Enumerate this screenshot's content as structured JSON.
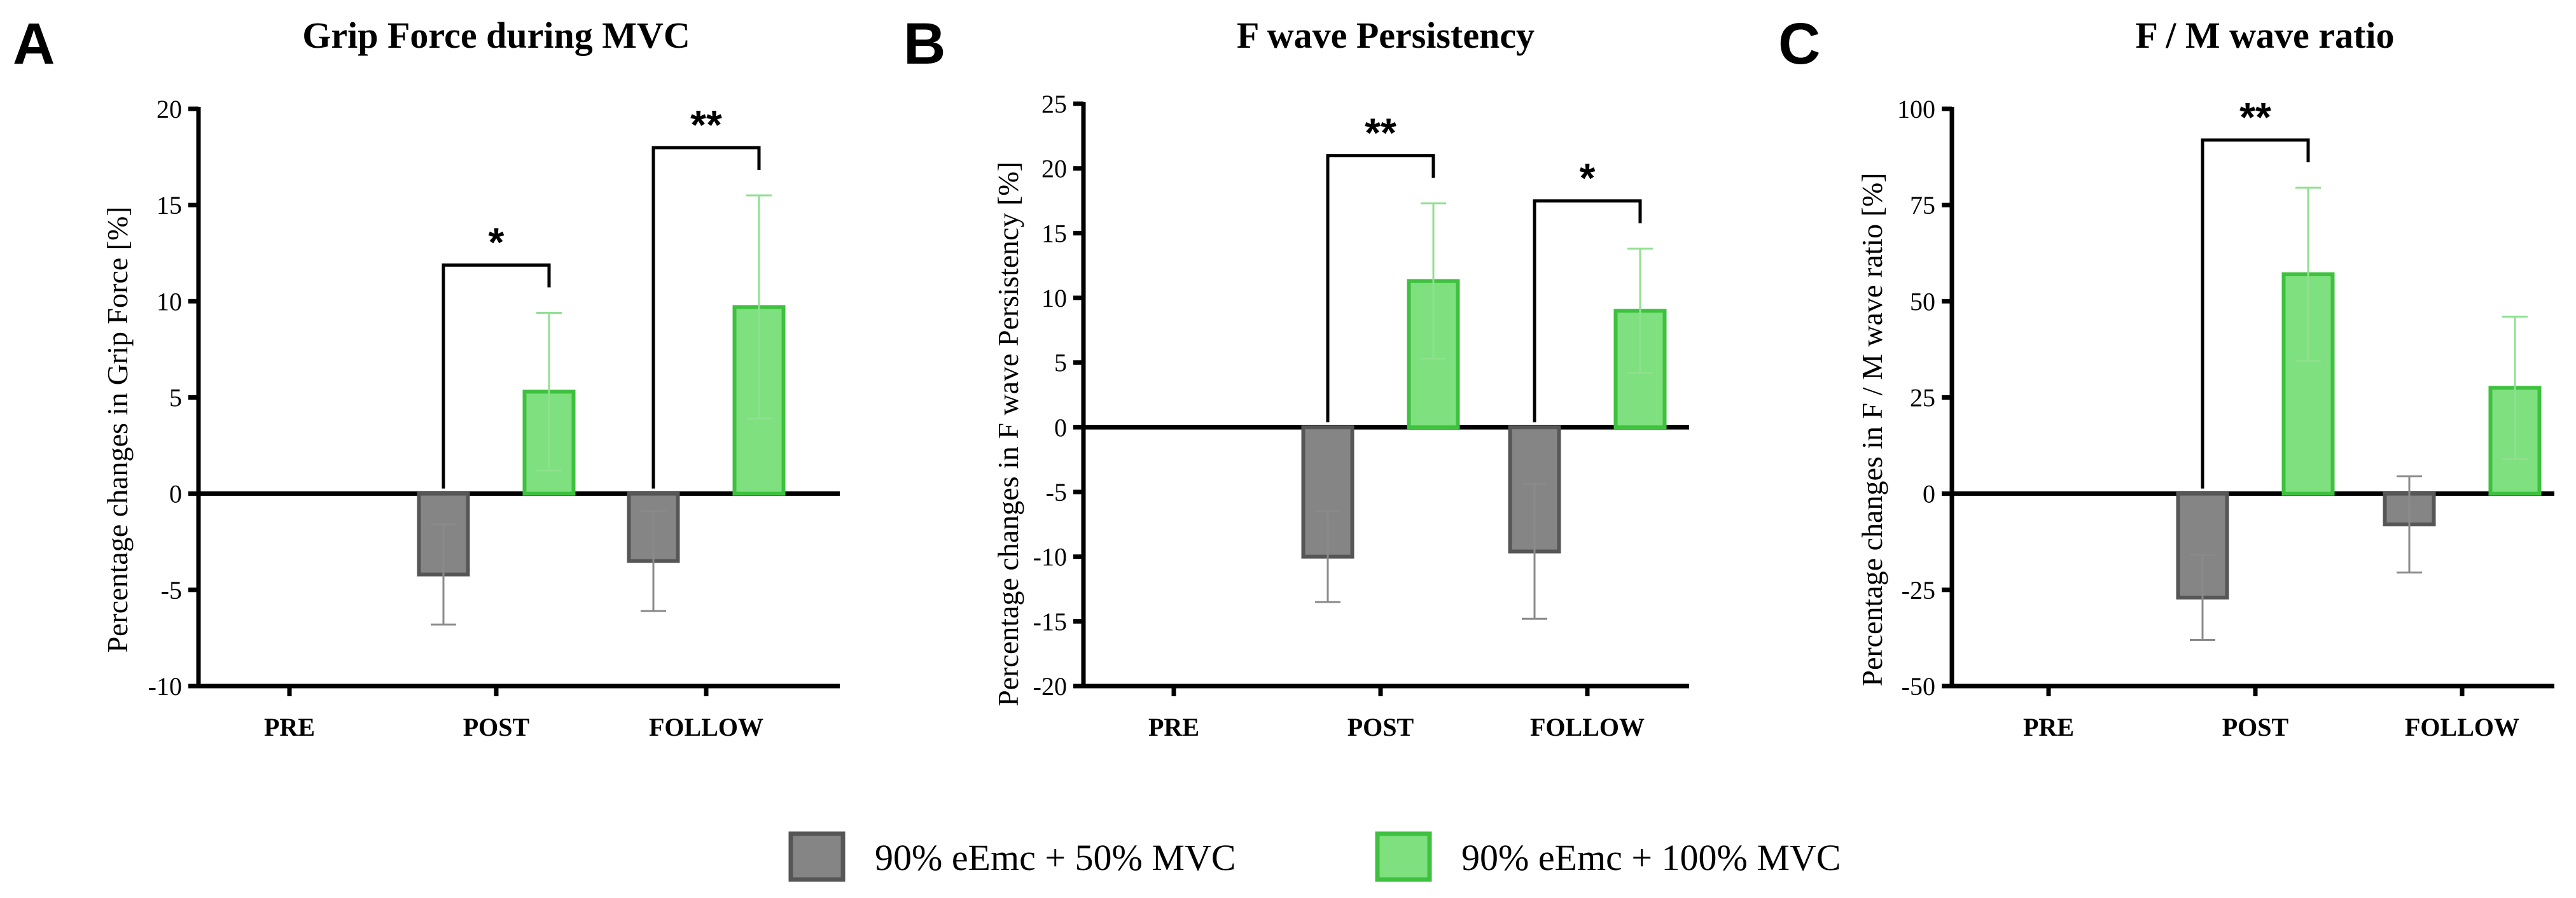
{
  "legend": {
    "items": [
      {
        "label": "90% eEmc + 50% MVC",
        "fill": "#858585",
        "stroke": "#565656"
      },
      {
        "label": "90% eEmc + 100% MVC",
        "fill": "#7ee07e",
        "stroke": "#3ec13e"
      }
    ]
  },
  "chart_data": [
    {
      "panel": "A",
      "type": "bar",
      "title": "Grip Force during MVC",
      "ylabel": "Percentage changes in Grip Force [%]",
      "xlabel": "",
      "categories": [
        "PRE",
        "POST",
        "FOLLOW"
      ],
      "ylim": [
        -10,
        20
      ],
      "yticks": [
        -10,
        -5,
        0,
        5,
        10,
        15,
        20
      ],
      "grid": false,
      "legend_position": "bottom",
      "series": [
        {
          "name": "90% eEmc + 50% MVC",
          "values": [
            null,
            -4.2,
            -3.5
          ],
          "error": [
            null,
            2.6,
            2.6
          ]
        },
        {
          "name": "90% eEmc + 100% MVC",
          "values": [
            null,
            5.3,
            9.7
          ],
          "error": [
            null,
            4.1,
            5.8
          ]
        }
      ],
      "significance": [
        {
          "category": "POST",
          "label": "*"
        },
        {
          "category": "FOLLOW",
          "label": "**"
        }
      ]
    },
    {
      "panel": "B",
      "type": "bar",
      "title": "F wave Persistency",
      "ylabel": "Percentage changes in F wave Persistency [%]",
      "xlabel": "",
      "categories": [
        "PRE",
        "POST",
        "FOLLOW"
      ],
      "ylim": [
        -20,
        25
      ],
      "yticks": [
        -20,
        -15,
        -10,
        -5,
        0,
        5,
        10,
        15,
        20,
        25
      ],
      "grid": false,
      "legend_position": "bottom",
      "series": [
        {
          "name": "90% eEmc + 50% MVC",
          "values": [
            null,
            -10.0,
            -9.6
          ],
          "error": [
            null,
            3.5,
            5.2
          ]
        },
        {
          "name": "90% eEmc + 100% MVC",
          "values": [
            null,
            11.3,
            9.0
          ],
          "error": [
            null,
            6.0,
            4.8
          ]
        }
      ],
      "significance": [
        {
          "category": "POST",
          "label": "**"
        },
        {
          "category": "FOLLOW",
          "label": "*"
        }
      ]
    },
    {
      "panel": "C",
      "type": "bar",
      "title": "F / M wave ratio",
      "ylabel": "Percentage changes in F / M wave ratio [%]",
      "xlabel": "",
      "categories": [
        "PRE",
        "POST",
        "FOLLOW"
      ],
      "ylim": [
        -50,
        100
      ],
      "yticks": [
        -50,
        -25,
        0,
        25,
        50,
        75,
        100
      ],
      "grid": false,
      "legend_position": "bottom",
      "series": [
        {
          "name": "90% eEmc + 50% MVC",
          "values": [
            null,
            -27.0,
            -8.0
          ],
          "error": [
            null,
            11.0,
            12.5
          ]
        },
        {
          "name": "90% eEmc + 100% MVC",
          "values": [
            null,
            57.0,
            27.5
          ],
          "error": [
            null,
            22.5,
            18.5
          ]
        }
      ],
      "significance": [
        {
          "category": "POST",
          "label": "**"
        }
      ]
    }
  ]
}
